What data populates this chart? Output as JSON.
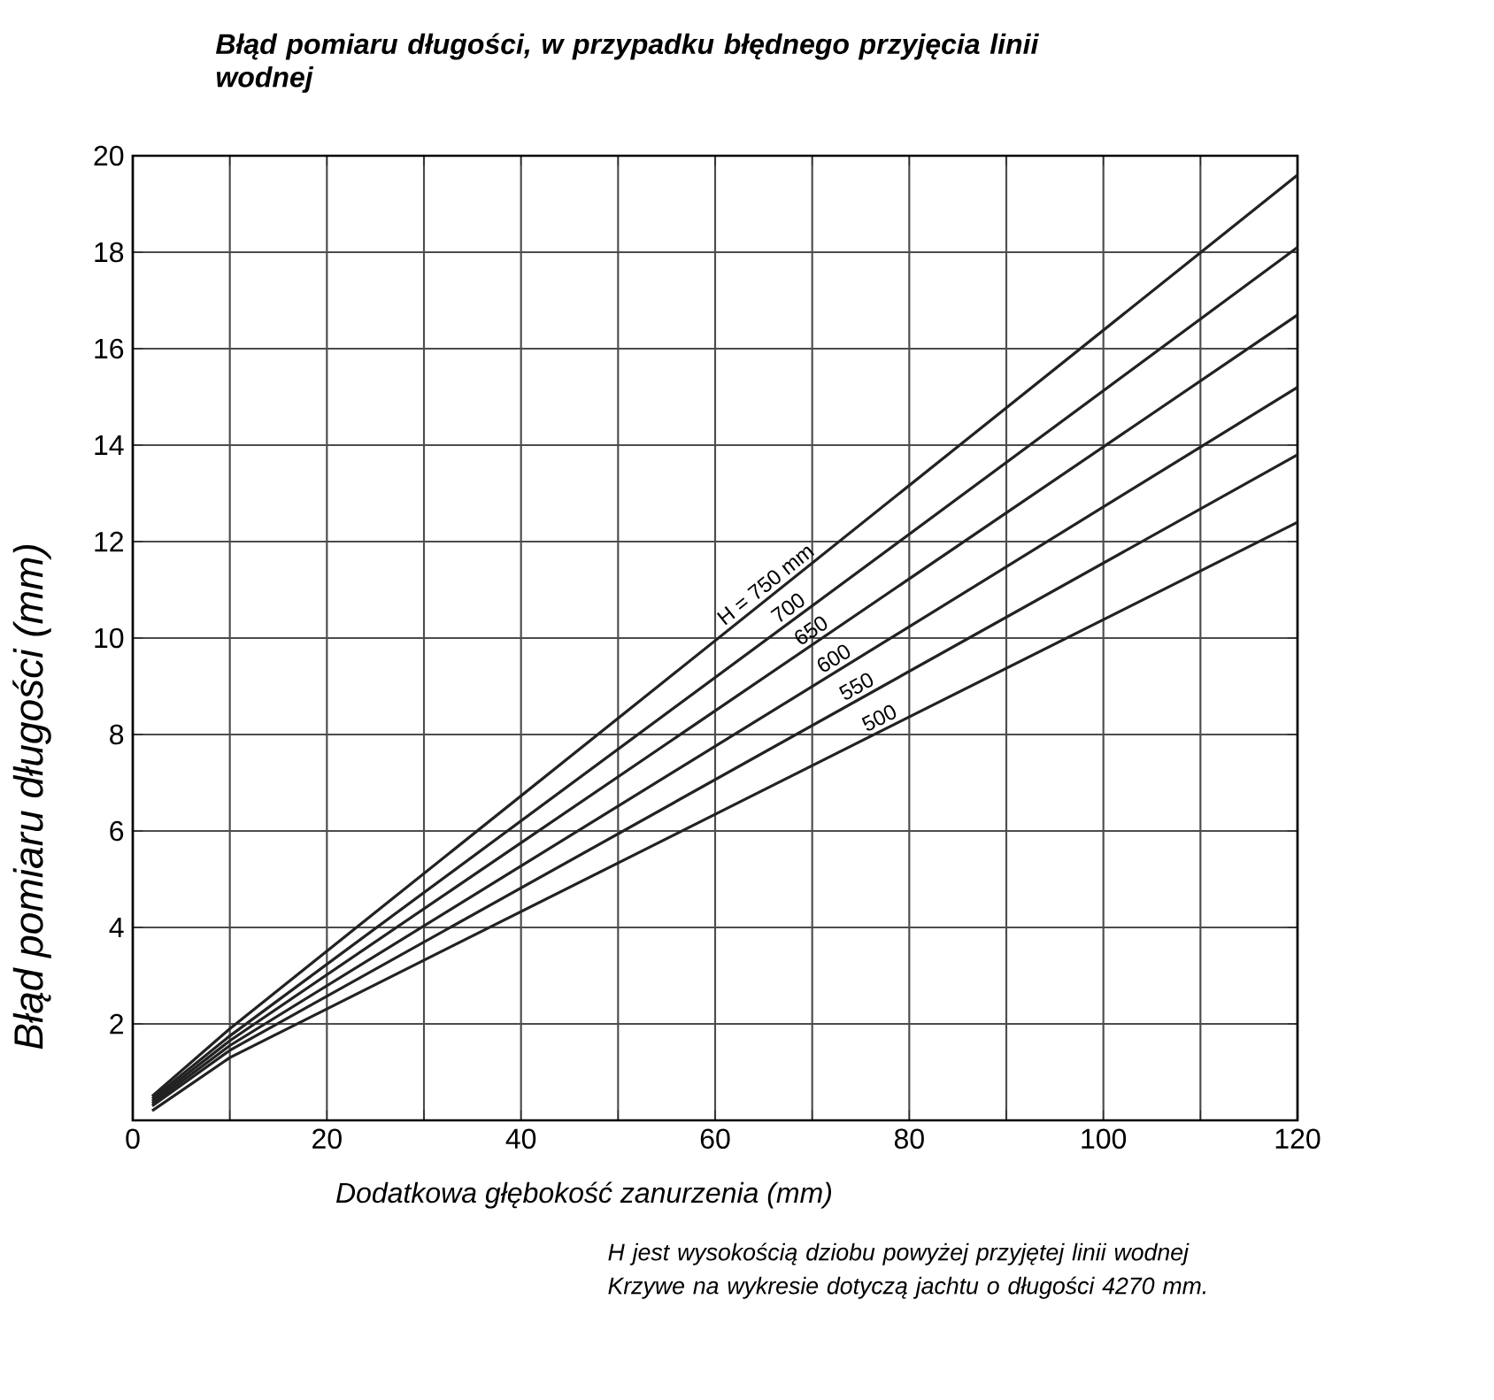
{
  "chart_data": {
    "type": "line",
    "title": "Błąd pomiaru długości, w przypadku błędnego przyjęcia linii wodnej",
    "xlabel": "Dodatkowa głębokość zanurzenia (mm)",
    "ylabel": "Błąd pomiaru długości (mm)",
    "annotations": [
      "H jest wysokością dziobu powyżej przyjętej linii wodnej",
      "Krzywe na wykresie dotyczą jachtu o długości 4270 mm."
    ],
    "x": [
      2,
      10,
      120
    ],
    "series": [
      {
        "name": "H = 750 mm",
        "color": "#222222",
        "values": [
          0.5,
          1.9,
          19.6
        ]
      },
      {
        "name": "700",
        "color": "#222222",
        "values": [
          0.45,
          1.75,
          18.1
        ]
      },
      {
        "name": "650",
        "color": "#222222",
        "values": [
          0.4,
          1.65,
          16.7
        ]
      },
      {
        "name": "600",
        "color": "#222222",
        "values": [
          0.35,
          1.55,
          15.2
        ]
      },
      {
        "name": "550",
        "color": "#222222",
        "values": [
          0.3,
          1.45,
          13.8
        ]
      },
      {
        "name": "500",
        "color": "#222222",
        "values": [
          0.2,
          1.3,
          12.4
        ]
      }
    ],
    "xlim": [
      0,
      120
    ],
    "ylim": [
      0,
      20
    ],
    "xticks": [
      0,
      {
        "value": 10,
        "label": null
      },
      20,
      {
        "value": 30,
        "label": null
      },
      40,
      {
        "value": 50,
        "label": null
      },
      60,
      {
        "value": 70,
        "label": null
      },
      80,
      {
        "value": 90,
        "label": null
      },
      100,
      {
        "value": 110,
        "label": null
      },
      120
    ],
    "yticks": [
      {
        "value": 0,
        "label": null
      },
      2,
      4,
      6,
      8,
      10,
      12,
      14,
      16,
      18,
      20
    ],
    "grid": true,
    "marker": "none",
    "line_style": "solid"
  }
}
